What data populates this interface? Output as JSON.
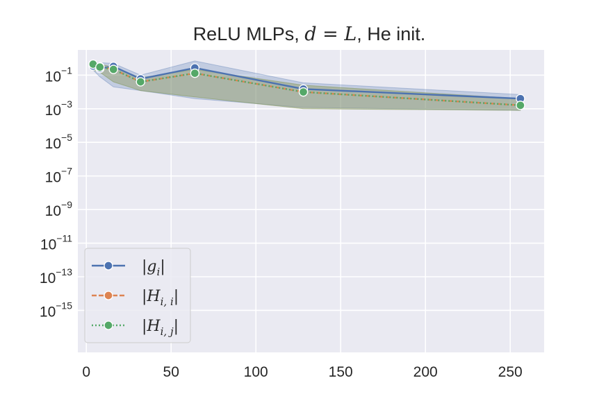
{
  "chart_data": {
    "type": "line",
    "title": {
      "prefix": "ReLU MLPs, ",
      "math": "d = L",
      "suffix": ", He init."
    },
    "xlabel": "",
    "ylabel": "",
    "x": [
      4,
      8,
      16,
      32,
      64,
      128,
      256
    ],
    "xlim": [
      -5,
      270
    ],
    "xticks": [
      0,
      50,
      100,
      150,
      200,
      250
    ],
    "ylim_exponent": [
      -17.5,
      0.5
    ],
    "y_scale": "log",
    "yticks": [
      {
        "base": "10",
        "exp": "−1",
        "value": 0.1
      },
      {
        "base": "10",
        "exp": "−3",
        "value": 0.001
      },
      {
        "base": "10",
        "exp": "−5",
        "value": 1e-05
      },
      {
        "base": "10",
        "exp": "−7",
        "value": 1e-07
      },
      {
        "base": "10",
        "exp": "−9",
        "value": 1e-09
      },
      {
        "base": "10",
        "exp": "−11",
        "value": 1e-11
      },
      {
        "base": "10",
        "exp": "−13",
        "value": 1e-13
      },
      {
        "base": "10",
        "exp": "−15",
        "value": 1e-15
      }
    ],
    "grid": true,
    "legend_position": "lower-left",
    "series": [
      {
        "name": "|g_i|",
        "legend": {
          "main": "g",
          "sub": "i"
        },
        "color": "#4c72b0",
        "linestyle": "solid",
        "y": [
          0.35,
          0.25,
          0.33,
          0.06,
          0.27,
          0.015,
          0.004
        ],
        "band_low": [
          0.2,
          0.08,
          0.02,
          0.012,
          0.004,
          0.0012,
          0.0008
        ],
        "band_high": [
          0.6,
          0.55,
          0.5,
          0.1,
          0.7,
          0.035,
          0.007
        ]
      },
      {
        "name": "|H_{i,i}|",
        "legend": {
          "main": "H",
          "sub": "i, i"
        },
        "color": "#dd8452",
        "linestyle": "dashed",
        "y": [
          0.45,
          0.32,
          0.22,
          0.04,
          0.13,
          0.01,
          0.0016
        ],
        "band_low": [
          0.2,
          0.15,
          0.04,
          0.012,
          0.005,
          0.001,
          0.0008
        ],
        "band_high": [
          0.55,
          0.45,
          0.3,
          0.07,
          0.22,
          0.025,
          0.004
        ]
      },
      {
        "name": "|H_{i,j}|",
        "legend": {
          "main": "H",
          "sub": "i, j"
        },
        "color": "#55a868",
        "linestyle": "dotted",
        "y": [
          0.45,
          0.3,
          0.22,
          0.04,
          0.13,
          0.01,
          0.0016
        ],
        "band_low": [
          0.2,
          0.15,
          0.04,
          0.012,
          0.005,
          0.001,
          0.0008
        ],
        "band_high": [
          0.55,
          0.45,
          0.3,
          0.07,
          0.22,
          0.025,
          0.004
        ]
      }
    ],
    "colors": {
      "plot_background": "#eaeaf2",
      "grid": "#ffffff",
      "text": "#262626"
    }
  }
}
